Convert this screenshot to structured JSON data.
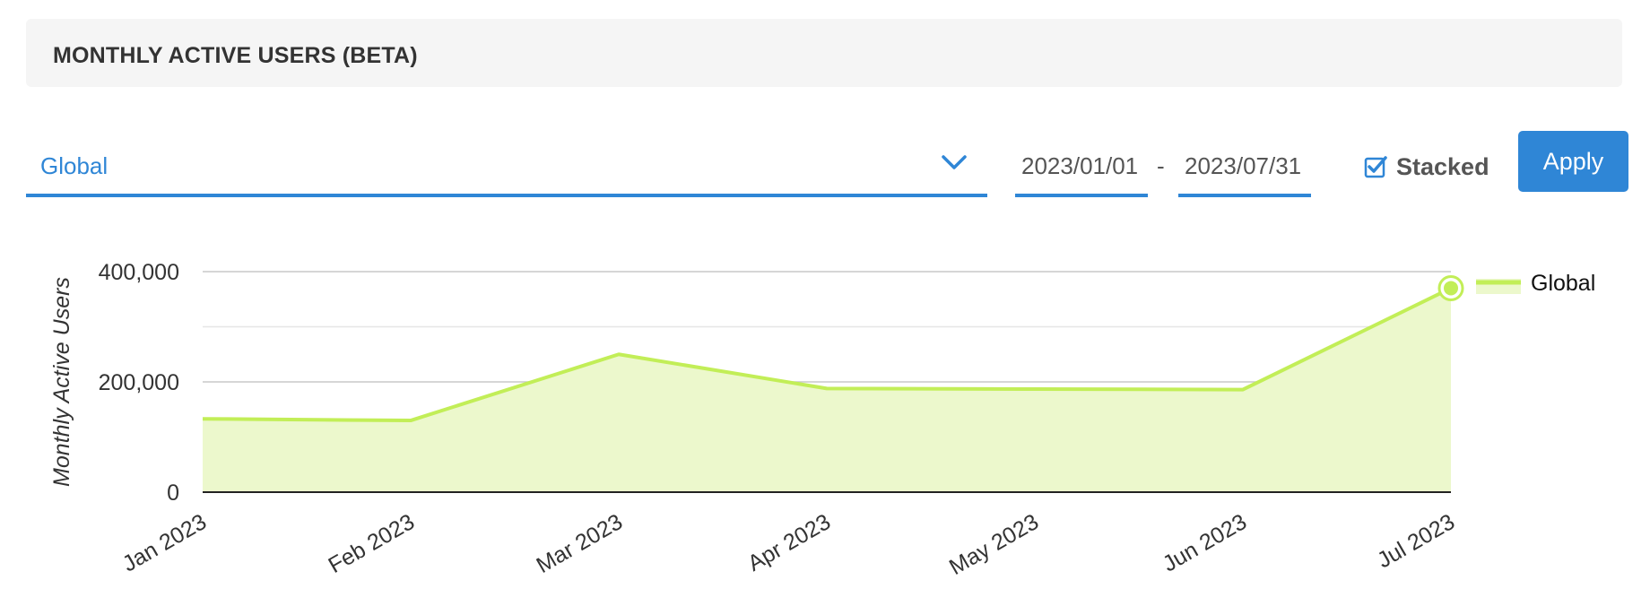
{
  "header": {
    "title": "MONTHLY ACTIVE USERS (BETA)"
  },
  "filters": {
    "region": "Global",
    "start_date": "2023/01/01",
    "date_separator": "-",
    "end_date": "2023/07/31",
    "stacked_label": "Stacked",
    "stacked_checked": true,
    "apply_label": "Apply"
  },
  "icons": {
    "dropdown": "chevron-down-icon",
    "checkbox": "checkbox-checked-icon"
  },
  "colors": {
    "accent": "#2f86d6",
    "series_line": "#c2ee57",
    "series_fill": "#ecf8cc"
  },
  "chart_data": {
    "type": "area",
    "title": "",
    "ylabel": "Monthly Active Users",
    "xlabel": "",
    "categories": [
      "Jan 2023",
      "Feb 2023",
      "Mar 2023",
      "Apr 2023",
      "May 2023",
      "Jun 2023",
      "Jul 2023"
    ],
    "series": [
      {
        "name": "Global",
        "values": [
          133000,
          130000,
          250000,
          188000,
          187000,
          186000,
          370000
        ]
      }
    ],
    "yticks": [
      {
        "value": 0,
        "label": "0"
      },
      {
        "value": 200000,
        "label": "200,000"
      },
      {
        "value": 400000,
        "label": "400,000"
      }
    ],
    "ylim": [
      0,
      400000
    ],
    "grid": true,
    "legend_position": "top-right",
    "highlighted_point": "Jul 2023"
  }
}
